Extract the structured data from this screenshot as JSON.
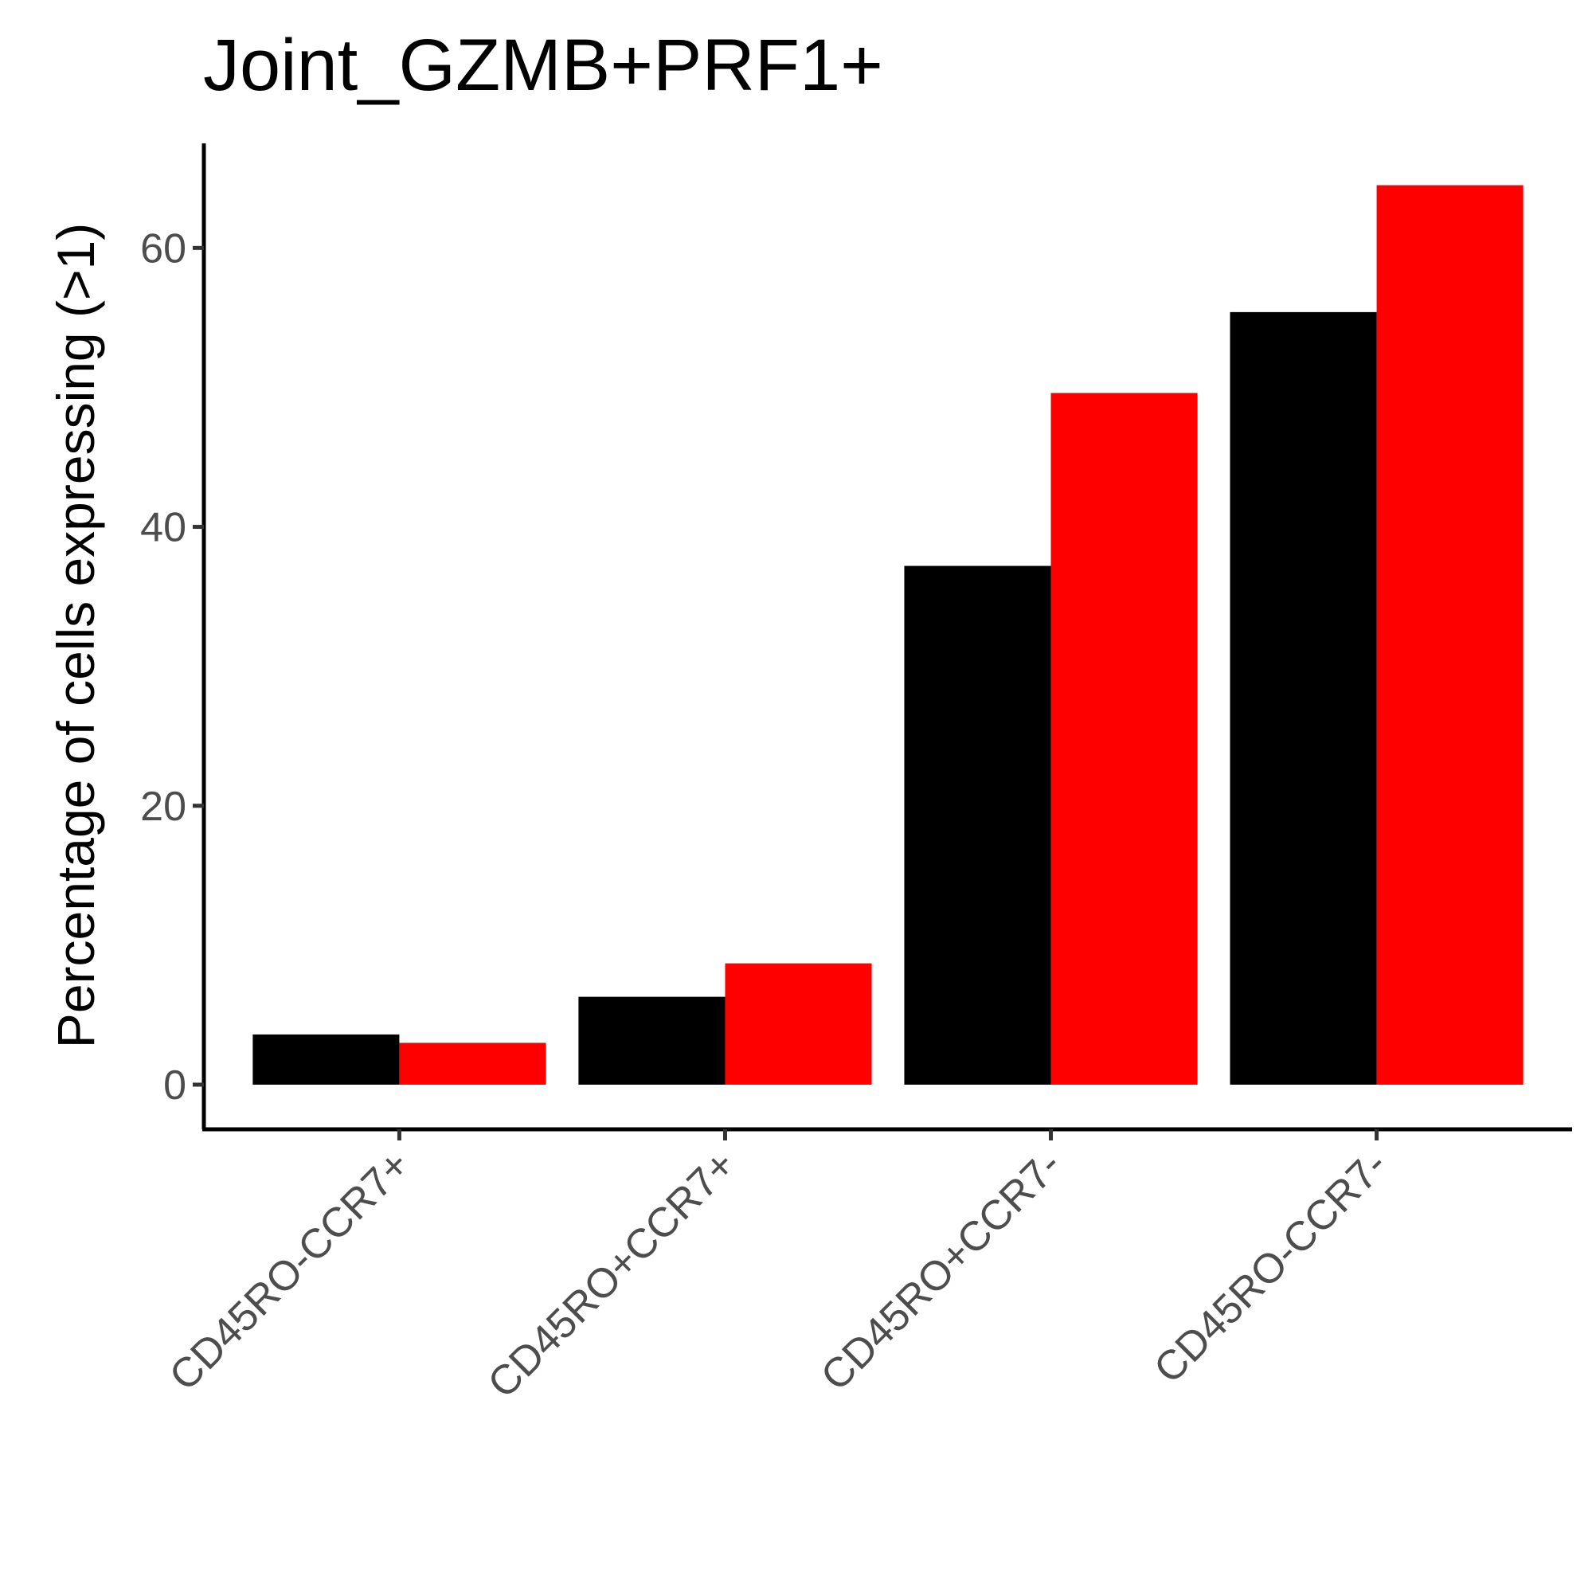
{
  "chart_data": {
    "type": "bar",
    "title": "Joint_GZMB+PRF1+",
    "xlabel": "",
    "ylabel": "Percentage of cells expressing (>1)",
    "categories": [
      "CD45RO-CCR7+",
      "CD45RO+CCR7+",
      "CD45RO+CCR7-",
      "CD45RO-CCR7-"
    ],
    "series": [
      {
        "color": "#000000",
        "values": [
          3.6,
          6.3,
          37.2,
          55.4
        ]
      },
      {
        "color": "#ff0000",
        "values": [
          3.0,
          8.7,
          49.6,
          64.5
        ]
      }
    ],
    "yticks": [
      0,
      20,
      40,
      60
    ],
    "ylim": [
      -3.2,
      67.5
    ],
    "grid": false,
    "legend": "none"
  }
}
